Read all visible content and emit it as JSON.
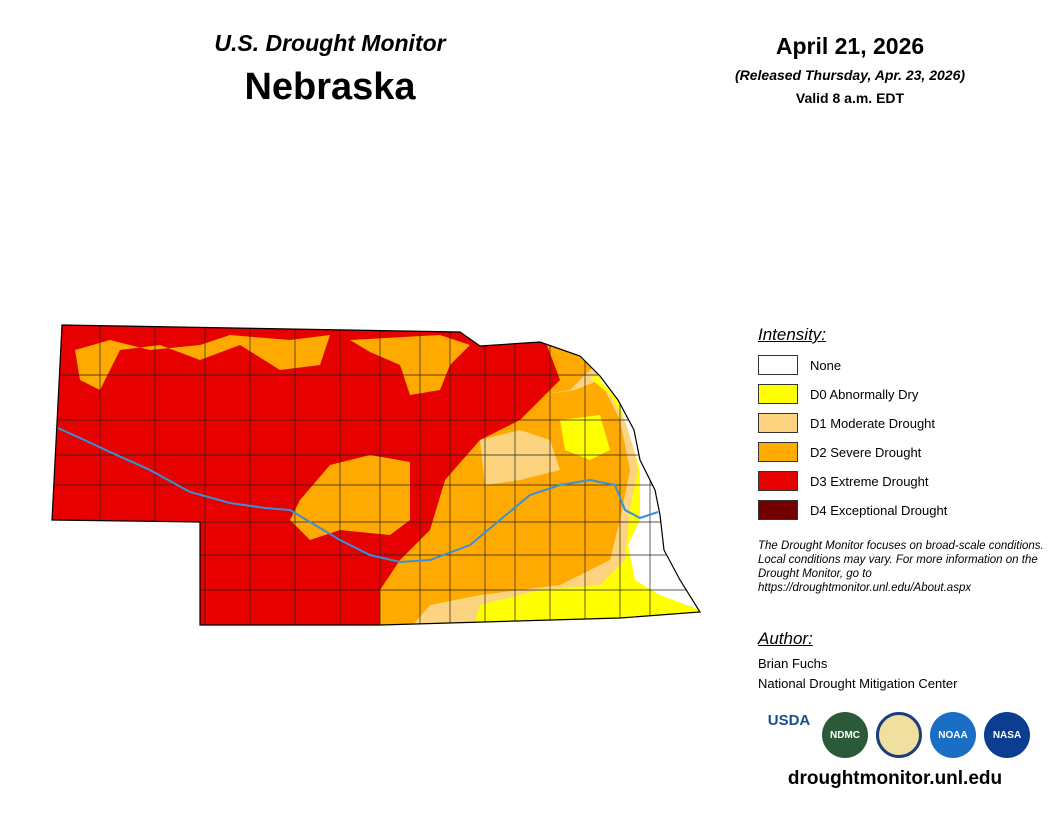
{
  "header": {
    "program": "U.S. Drought Monitor",
    "state": "Nebraska",
    "date": "April 21, 2026",
    "released": "(Released Thursday, Apr. 23, 2026)",
    "valid": "Valid 8 a.m. EDT"
  },
  "legend": {
    "title": "Intensity:",
    "items": [
      {
        "label": "None",
        "color": "#ffffff"
      },
      {
        "label": "D0 Abnormally Dry",
        "color": "#ffff00"
      },
      {
        "label": "D1 Moderate Drought",
        "color": "#fcd37f"
      },
      {
        "label": "D2 Severe Drought",
        "color": "#ffaa00"
      },
      {
        "label": "D3 Extreme Drought",
        "color": "#e60000"
      },
      {
        "label": "D4 Exceptional Drought",
        "color": "#730000"
      }
    ]
  },
  "note": "The Drought Monitor focuses on broad-scale conditions. Local conditions may vary. For more information on the Drought Monitor, go to https://droughtmonitor.unl.edu/About.aspx",
  "author": {
    "title": "Author:",
    "name": "Brian Fuchs",
    "org": "National Drought Mitigation Center"
  },
  "logos": [
    "USDA",
    "NDMC",
    "NOAA",
    "NASA"
  ],
  "url": "droughtmonitor.unl.edu"
}
